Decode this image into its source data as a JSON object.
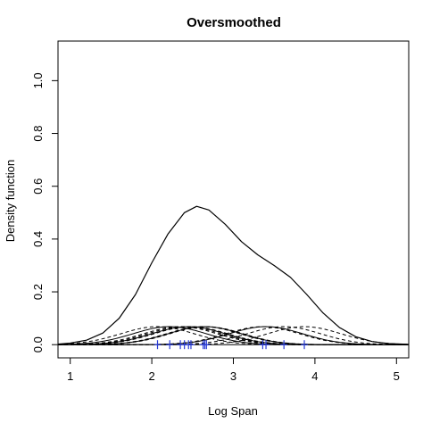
{
  "chart_data": {
    "type": "line",
    "title": "Oversmoothed",
    "xlabel": "Log Span",
    "ylabel": "Density function",
    "xlim": [
      0.85,
      5.15
    ],
    "ylim": [
      -0.05,
      1.15
    ],
    "xticks": [
      1,
      2,
      3,
      4,
      5
    ],
    "yticks": [
      0.0,
      0.2,
      0.4,
      0.6,
      0.8,
      1.0
    ],
    "grid": false,
    "legend": "none",
    "rug_color": "#2a3dd6",
    "line_color": "#000000",
    "observations": [
      2.07,
      2.22,
      2.35,
      2.4,
      2.45,
      2.48,
      2.63,
      2.65,
      2.67,
      3.36,
      3.4,
      3.62,
      3.87
    ],
    "bandwidth": 0.45,
    "overall_density": {
      "x": [
        0.85,
        1.0,
        1.2,
        1.4,
        1.6,
        1.8,
        2.0,
        2.2,
        2.4,
        2.55,
        2.7,
        2.9,
        3.1,
        3.3,
        3.5,
        3.7,
        3.9,
        4.1,
        4.3,
        4.5,
        4.7,
        4.9,
        5.15
      ],
      "y": [
        0.002,
        0.006,
        0.017,
        0.044,
        0.1,
        0.19,
        0.31,
        0.42,
        0.5,
        0.524,
        0.51,
        0.456,
        0.39,
        0.34,
        0.3,
        0.255,
        0.19,
        0.12,
        0.065,
        0.03,
        0.012,
        0.004,
        0.001
      ]
    }
  }
}
